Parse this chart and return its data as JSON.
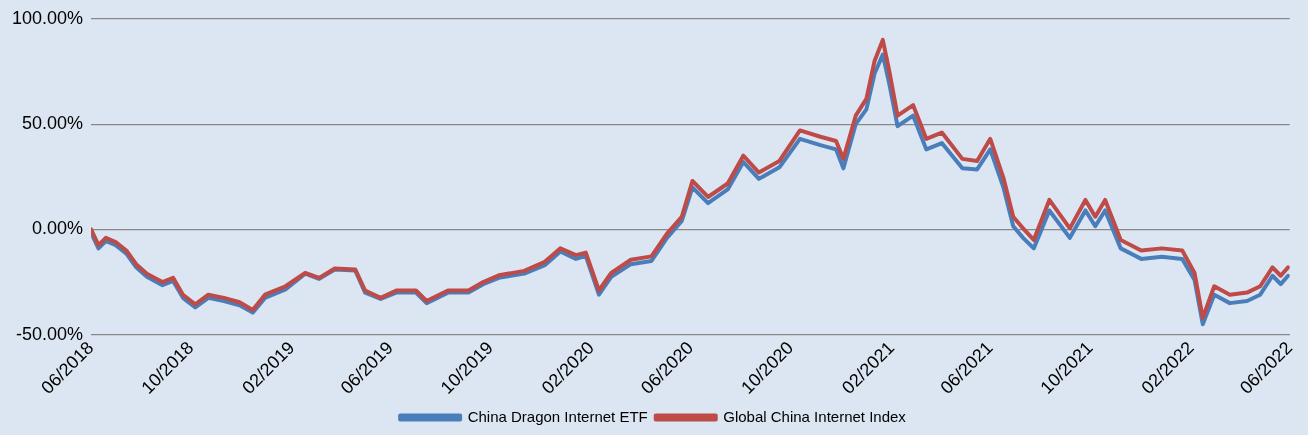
{
  "chart_data": {
    "type": "line",
    "x": [
      "2018-06-01",
      "2018-06-10",
      "2018-06-19",
      "2018-07-01",
      "2018-07-14",
      "2018-07-26",
      "2018-08-08",
      "2018-08-27",
      "2018-09-09",
      "2018-09-21",
      "2018-10-06",
      "2018-10-22",
      "2018-11-10",
      "2018-11-29",
      "2018-12-15",
      "2018-12-30",
      "2019-01-24",
      "2019-02-17",
      "2019-03-06",
      "2019-03-25",
      "2019-04-19",
      "2019-05-01",
      "2019-05-20",
      "2019-06-08",
      "2019-07-02",
      "2019-07-15",
      "2019-08-10",
      "2019-09-04",
      "2019-09-22",
      "2019-10-11",
      "2019-11-11",
      "2019-12-06",
      "2019-12-25",
      "2020-01-13",
      "2020-01-25",
      "2020-02-10",
      "2020-02-25",
      "2020-03-20",
      "2020-04-14",
      "2020-05-03",
      "2020-05-21",
      "2020-06-03",
      "2020-06-22",
      "2020-07-16",
      "2020-08-04",
      "2020-08-23",
      "2020-09-17",
      "2020-10-12",
      "2020-11-06",
      "2020-11-25",
      "2020-12-04",
      "2020-12-19",
      "2021-01-01",
      "2021-01-11",
      "2021-01-21",
      "2021-01-29",
      "2021-02-08",
      "2021-02-27",
      "2021-03-15",
      "2021-04-03",
      "2021-04-28",
      "2021-05-16",
      "2021-06-01",
      "2021-06-17",
      "2021-06-29",
      "2021-07-11",
      "2021-07-24",
      "2021-08-12",
      "2021-09-06",
      "2021-09-25",
      "2021-10-07",
      "2021-10-19",
      "2021-11-07",
      "2021-12-02",
      "2021-12-27",
      "2022-01-21",
      "2022-02-05",
      "2022-02-15",
      "2022-03-01",
      "2022-03-20",
      "2022-04-10",
      "2022-04-26",
      "2022-05-11",
      "2022-05-21",
      "2022-05-30"
    ],
    "series": [
      {
        "name": "China Dragon Internet ETF",
        "color": "#4a7ebb",
        "values": [
          -1.5,
          -9,
          -5.5,
          -7.5,
          -11.5,
          -18,
          -22.5,
          -26.5,
          -24.5,
          -32.5,
          -37,
          -32.5,
          -34,
          -36,
          -39.5,
          -32.5,
          -28.5,
          -21,
          -23.5,
          -19,
          -19.5,
          -30,
          -33,
          -30,
          -30,
          -35,
          -30,
          -30,
          -26,
          -23,
          -21,
          -17,
          -10.5,
          -14,
          -12.5,
          -31,
          -22.5,
          -16.5,
          -15,
          -4,
          4,
          20,
          12.5,
          19,
          32,
          24,
          29.5,
          43,
          40,
          38,
          29,
          50,
          57,
          74,
          83,
          69,
          49,
          54,
          38,
          41,
          29,
          28.5,
          38,
          20,
          1.5,
          -4,
          -9,
          9,
          -4,
          9,
          1.5,
          9,
          -9,
          -14,
          -13,
          -14,
          -24,
          -45,
          -31,
          -35,
          -34,
          -31,
          -22,
          -26,
          -22
        ]
      },
      {
        "name": "Global China Internet Index",
        "color": "#be4b48",
        "values": [
          0,
          -7.5,
          -4,
          -6,
          -10,
          -16.5,
          -21,
          -25,
          -23,
          -31,
          -35.6,
          -31,
          -32.5,
          -34.6,
          -38.3,
          -31,
          -27,
          -20.7,
          -23,
          -18.6,
          -19,
          -29,
          -32.5,
          -29,
          -29,
          -34,
          -29,
          -29,
          -25,
          -21.8,
          -19.7,
          -15.4,
          -9,
          -12.2,
          -11,
          -29,
          -20.7,
          -14.4,
          -12.8,
          -2,
          6,
          23,
          15.4,
          21.8,
          35,
          27,
          32.5,
          47,
          44,
          42,
          33.5,
          54,
          62,
          80,
          90,
          75,
          54,
          59,
          43,
          46,
          33.5,
          32.5,
          43,
          24.5,
          6,
          0.5,
          -5,
          14,
          0.5,
          14,
          6,
          14,
          -5,
          -10,
          -9,
          -10,
          -20.7,
          -42,
          -27,
          -31,
          -30,
          -27,
          -18,
          -22,
          -18
        ]
      }
    ],
    "xlim": [
      "2018-06-01",
      "2022-06-01"
    ],
    "xticks": [
      {
        "value": "2018-06",
        "label": "06/2018"
      },
      {
        "value": "2018-10",
        "label": "10/2018"
      },
      {
        "value": "2019-02",
        "label": "02/2019"
      },
      {
        "value": "2019-06",
        "label": "06/2019"
      },
      {
        "value": "2019-10",
        "label": "10/2019"
      },
      {
        "value": "2020-02",
        "label": "02/2020"
      },
      {
        "value": "2020-06",
        "label": "06/2020"
      },
      {
        "value": "2020-10",
        "label": "10/2020"
      },
      {
        "value": "2021-02",
        "label": "02/2021"
      },
      {
        "value": "2021-06",
        "label": "06/2021"
      },
      {
        "value": "2021-10",
        "label": "10/2021"
      },
      {
        "value": "2022-02",
        "label": "02/2022"
      },
      {
        "value": "2022-06",
        "label": "06/2022"
      }
    ],
    "ylim": [
      -50,
      100
    ],
    "yticks": [
      {
        "value": -50,
        "label": "-50.00%"
      },
      {
        "value": 0,
        "label": "0.00%"
      },
      {
        "value": 50,
        "label": "50.00%"
      },
      {
        "value": 100,
        "label": "100.00%"
      }
    ],
    "grid": "y",
    "legend": "bottom",
    "marker": "none",
    "line_style": "solid"
  }
}
